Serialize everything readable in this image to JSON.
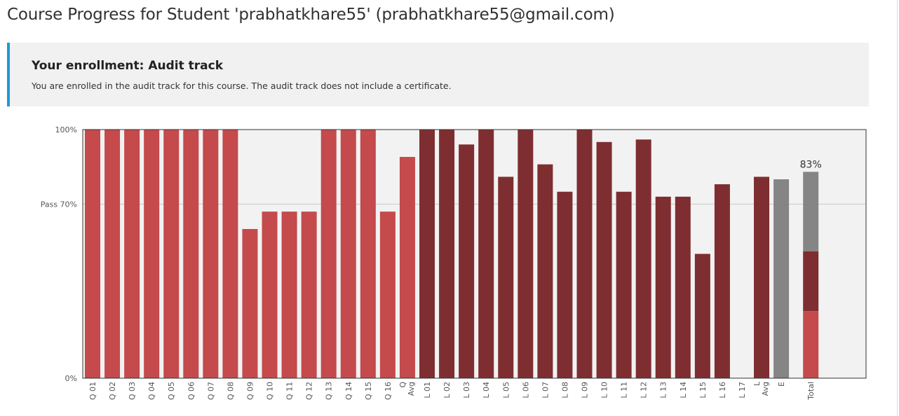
{
  "page": {
    "title": "Course Progress for Student 'prabhatkhare55' (prabhatkhare55@gmail.com)"
  },
  "enrollment": {
    "heading": "Your enrollment: Audit track",
    "message": "You are enrolled in the audit track for this course. The audit track does not include a certificate."
  },
  "chart_data": {
    "type": "bar",
    "ylim": [
      0,
      100
    ],
    "y_tick_labels": [
      "100%",
      "Pass 70%",
      "0%"
    ],
    "y_tick_values": [
      100,
      70,
      0
    ],
    "pass_line": 70,
    "grid": true,
    "legend": "none",
    "colors": {
      "quiz": "#c44a4c",
      "lab": "#7e2e31",
      "exam": "#858585",
      "plot_bg": "#f2f2f2",
      "axis": "#333333"
    },
    "categories": [
      "Q 01",
      "Q 02",
      "Q 03",
      "Q 04",
      "Q 05",
      "Q 06",
      "Q 07",
      "Q 08",
      "Q 09",
      "Q 10",
      "Q 11",
      "Q 12",
      "Q 13",
      "Q 14",
      "Q 15",
      "Q 16",
      "Q Avg",
      "L 01",
      "L 02",
      "L 03",
      "L 04",
      "L 05",
      "L 06",
      "L 07",
      "L 08",
      "L 09",
      "L 10",
      "L 11",
      "L 12",
      "L 13",
      "L 14",
      "L 15",
      "L 16",
      "L 17",
      "L Avg",
      "E",
      "Total"
    ],
    "bars": [
      {
        "label": "Q 01",
        "value": 100,
        "group": "quiz"
      },
      {
        "label": "Q 02",
        "value": 100,
        "group": "quiz"
      },
      {
        "label": "Q 03",
        "value": 100,
        "group": "quiz"
      },
      {
        "label": "Q 04",
        "value": 100,
        "group": "quiz"
      },
      {
        "label": "Q 05",
        "value": 100,
        "group": "quiz"
      },
      {
        "label": "Q 06",
        "value": 100,
        "group": "quiz"
      },
      {
        "label": "Q 07",
        "value": 100,
        "group": "quiz"
      },
      {
        "label": "Q 08",
        "value": 100,
        "group": "quiz"
      },
      {
        "label": "Q 09",
        "value": 60,
        "group": "quiz"
      },
      {
        "label": "Q 10",
        "value": 67,
        "group": "quiz"
      },
      {
        "label": "Q 11",
        "value": 67,
        "group": "quiz"
      },
      {
        "label": "Q 12",
        "value": 67,
        "group": "quiz"
      },
      {
        "label": "Q 13",
        "value": 100,
        "group": "quiz"
      },
      {
        "label": "Q 14",
        "value": 100,
        "group": "quiz"
      },
      {
        "label": "Q 15",
        "value": 100,
        "group": "quiz"
      },
      {
        "label": "Q 16",
        "value": 67,
        "group": "quiz"
      },
      {
        "label": "Q Avg",
        "value": 89,
        "group": "quiz"
      },
      {
        "label": "L 01",
        "value": 100,
        "group": "lab"
      },
      {
        "label": "L 02",
        "value": 100,
        "group": "lab"
      },
      {
        "label": "L 03",
        "value": 94,
        "group": "lab"
      },
      {
        "label": "L 04",
        "value": 100,
        "group": "lab"
      },
      {
        "label": "L 05",
        "value": 81,
        "group": "lab"
      },
      {
        "label": "L 06",
        "value": 100,
        "group": "lab"
      },
      {
        "label": "L 07",
        "value": 86,
        "group": "lab"
      },
      {
        "label": "L 08",
        "value": 75,
        "group": "lab"
      },
      {
        "label": "L 09",
        "value": 100,
        "group": "lab"
      },
      {
        "label": "L 10",
        "value": 95,
        "group": "lab"
      },
      {
        "label": "L 11",
        "value": 75,
        "group": "lab"
      },
      {
        "label": "L 12",
        "value": 96,
        "group": "lab"
      },
      {
        "label": "L 13",
        "value": 73,
        "group": "lab"
      },
      {
        "label": "L 14",
        "value": 73,
        "group": "lab"
      },
      {
        "label": "L 15",
        "value": 50,
        "group": "lab"
      },
      {
        "label": "L 16",
        "value": 78,
        "group": "lab"
      },
      {
        "label": "L 17",
        "value": 0,
        "group": "lab"
      },
      {
        "label": "L Avg",
        "value": 81,
        "group": "lab"
      },
      {
        "label": "E",
        "value": 80,
        "group": "exam"
      }
    ],
    "total": {
      "label": "Total",
      "value": 83,
      "value_label": "83%",
      "segments": [
        {
          "group": "quiz",
          "value": 27
        },
        {
          "group": "lab",
          "value": 24
        },
        {
          "group": "exam",
          "value": 32
        }
      ]
    }
  }
}
